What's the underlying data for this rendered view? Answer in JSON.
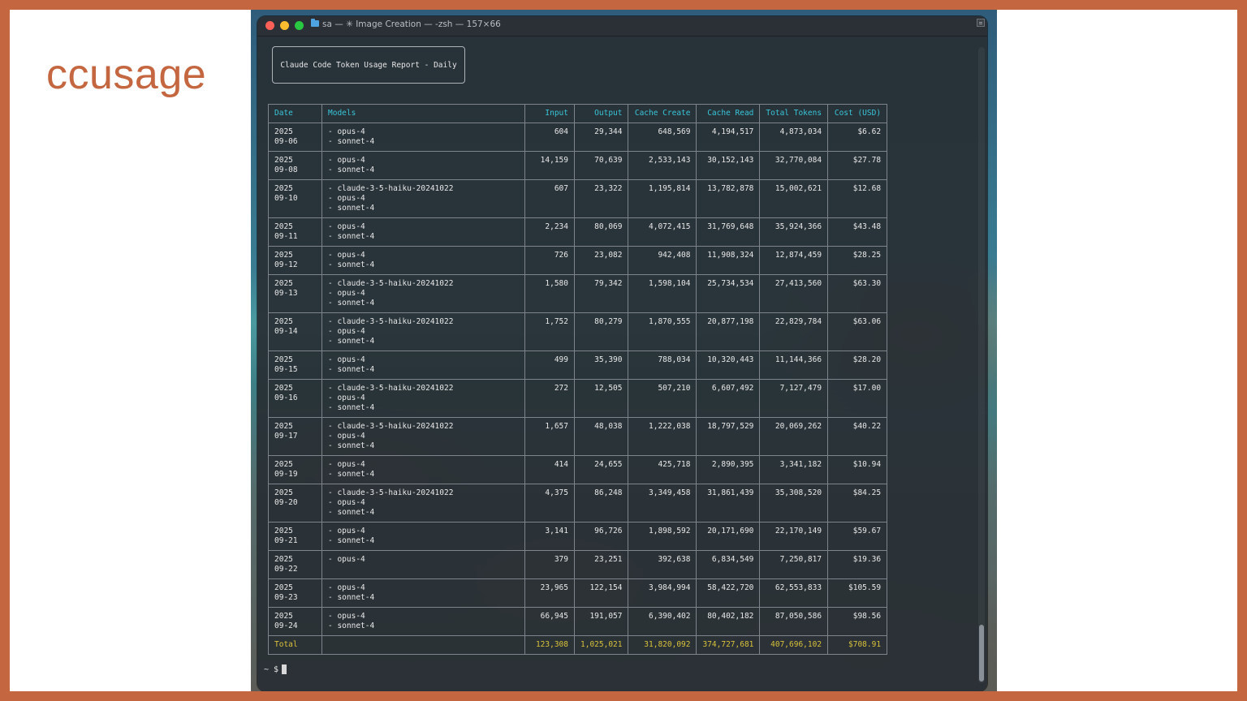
{
  "slide": {
    "brand": "ccusage"
  },
  "window": {
    "title": "sa — ✳ Image Creation — -zsh — 157×66",
    "folder_icon": "folder-icon"
  },
  "report": {
    "title": "Claude Code Token Usage Report - Daily"
  },
  "colors": {
    "header_text": "#38c6d8",
    "total_text": "#d8c13a",
    "frame": "#c4663f",
    "brand": "#c4663f"
  },
  "table": {
    "headers": [
      "Date",
      "Models",
      "Input",
      "Output",
      "Cache Create",
      "Cache Read",
      "Total Tokens",
      "Cost (USD)"
    ],
    "rows": [
      {
        "date": [
          "2025",
          "09-06"
        ],
        "models": [
          "- opus-4",
          "- sonnet-4"
        ],
        "input": "604",
        "output": "29,344",
        "cache_create": "648,569",
        "cache_read": "4,194,517",
        "total": "4,873,034",
        "cost": "$6.62"
      },
      {
        "date": [
          "2025",
          "09-08"
        ],
        "models": [
          "- opus-4",
          "- sonnet-4"
        ],
        "input": "14,159",
        "output": "70,639",
        "cache_create": "2,533,143",
        "cache_read": "30,152,143",
        "total": "32,770,084",
        "cost": "$27.78"
      },
      {
        "date": [
          "2025",
          "09-10"
        ],
        "models": [
          "- claude-3-5-haiku-20241022",
          "- opus-4",
          "- sonnet-4"
        ],
        "input": "607",
        "output": "23,322",
        "cache_create": "1,195,814",
        "cache_read": "13,782,878",
        "total": "15,002,621",
        "cost": "$12.68"
      },
      {
        "date": [
          "2025",
          "09-11"
        ],
        "models": [
          "- opus-4",
          "- sonnet-4"
        ],
        "input": "2,234",
        "output": "80,069",
        "cache_create": "4,072,415",
        "cache_read": "31,769,648",
        "total": "35,924,366",
        "cost": "$43.48"
      },
      {
        "date": [
          "2025",
          "09-12"
        ],
        "models": [
          "- opus-4",
          "- sonnet-4"
        ],
        "input": "726",
        "output": "23,082",
        "cache_create": "942,408",
        "cache_read": "11,908,324",
        "total": "12,874,459",
        "cost": "$28.25"
      },
      {
        "date": [
          "2025",
          "09-13"
        ],
        "models": [
          "- claude-3-5-haiku-20241022",
          "- opus-4",
          "- sonnet-4"
        ],
        "input": "1,580",
        "output": "79,342",
        "cache_create": "1,598,104",
        "cache_read": "25,734,534",
        "total": "27,413,560",
        "cost": "$63.30"
      },
      {
        "date": [
          "2025",
          "09-14"
        ],
        "models": [
          "- claude-3-5-haiku-20241022",
          "- opus-4",
          "- sonnet-4"
        ],
        "input": "1,752",
        "output": "80,279",
        "cache_create": "1,870,555",
        "cache_read": "20,877,198",
        "total": "22,829,784",
        "cost": "$63.06"
      },
      {
        "date": [
          "2025",
          "09-15"
        ],
        "models": [
          "- opus-4",
          "- sonnet-4"
        ],
        "input": "499",
        "output": "35,390",
        "cache_create": "788,034",
        "cache_read": "10,320,443",
        "total": "11,144,366",
        "cost": "$28.20"
      },
      {
        "date": [
          "2025",
          "09-16"
        ],
        "models": [
          "- claude-3-5-haiku-20241022",
          "- opus-4",
          "- sonnet-4"
        ],
        "input": "272",
        "output": "12,505",
        "cache_create": "507,210",
        "cache_read": "6,607,492",
        "total": "7,127,479",
        "cost": "$17.00"
      },
      {
        "date": [
          "2025",
          "09-17"
        ],
        "models": [
          "- claude-3-5-haiku-20241022",
          "- opus-4",
          "- sonnet-4"
        ],
        "input": "1,657",
        "output": "48,038",
        "cache_create": "1,222,038",
        "cache_read": "18,797,529",
        "total": "20,069,262",
        "cost": "$40.22"
      },
      {
        "date": [
          "2025",
          "09-19"
        ],
        "models": [
          "- opus-4",
          "- sonnet-4"
        ],
        "input": "414",
        "output": "24,655",
        "cache_create": "425,718",
        "cache_read": "2,890,395",
        "total": "3,341,182",
        "cost": "$10.94"
      },
      {
        "date": [
          "2025",
          "09-20"
        ],
        "models": [
          "- claude-3-5-haiku-20241022",
          "- opus-4",
          "- sonnet-4"
        ],
        "input": "4,375",
        "output": "86,248",
        "cache_create": "3,349,458",
        "cache_read": "31,861,439",
        "total": "35,308,520",
        "cost": "$84.25"
      },
      {
        "date": [
          "2025",
          "09-21"
        ],
        "models": [
          "- opus-4",
          "- sonnet-4"
        ],
        "input": "3,141",
        "output": "96,726",
        "cache_create": "1,898,592",
        "cache_read": "20,171,690",
        "total": "22,170,149",
        "cost": "$59.67"
      },
      {
        "date": [
          "2025",
          "09-22"
        ],
        "models": [
          "- opus-4"
        ],
        "input": "379",
        "output": "23,251",
        "cache_create": "392,638",
        "cache_read": "6,834,549",
        "total": "7,250,817",
        "cost": "$19.36"
      },
      {
        "date": [
          "2025",
          "09-23"
        ],
        "models": [
          "- opus-4",
          "- sonnet-4"
        ],
        "input": "23,965",
        "output": "122,154",
        "cache_create": "3,984,994",
        "cache_read": "58,422,720",
        "total": "62,553,833",
        "cost": "$105.59"
      },
      {
        "date": [
          "2025",
          "09-24"
        ],
        "models": [
          "- opus-4",
          "- sonnet-4"
        ],
        "input": "66,945",
        "output": "191,057",
        "cache_create": "6,390,402",
        "cache_read": "80,402,182",
        "total": "87,050,586",
        "cost": "$98.56"
      }
    ],
    "total": {
      "label": "Total",
      "models": "",
      "input": "123,308",
      "output": "1,025,021",
      "cache_create": "31,820,092",
      "cache_read": "374,727,681",
      "total": "407,696,102",
      "cost": "$708.91"
    }
  },
  "prompt": {
    "text": "~ $"
  }
}
